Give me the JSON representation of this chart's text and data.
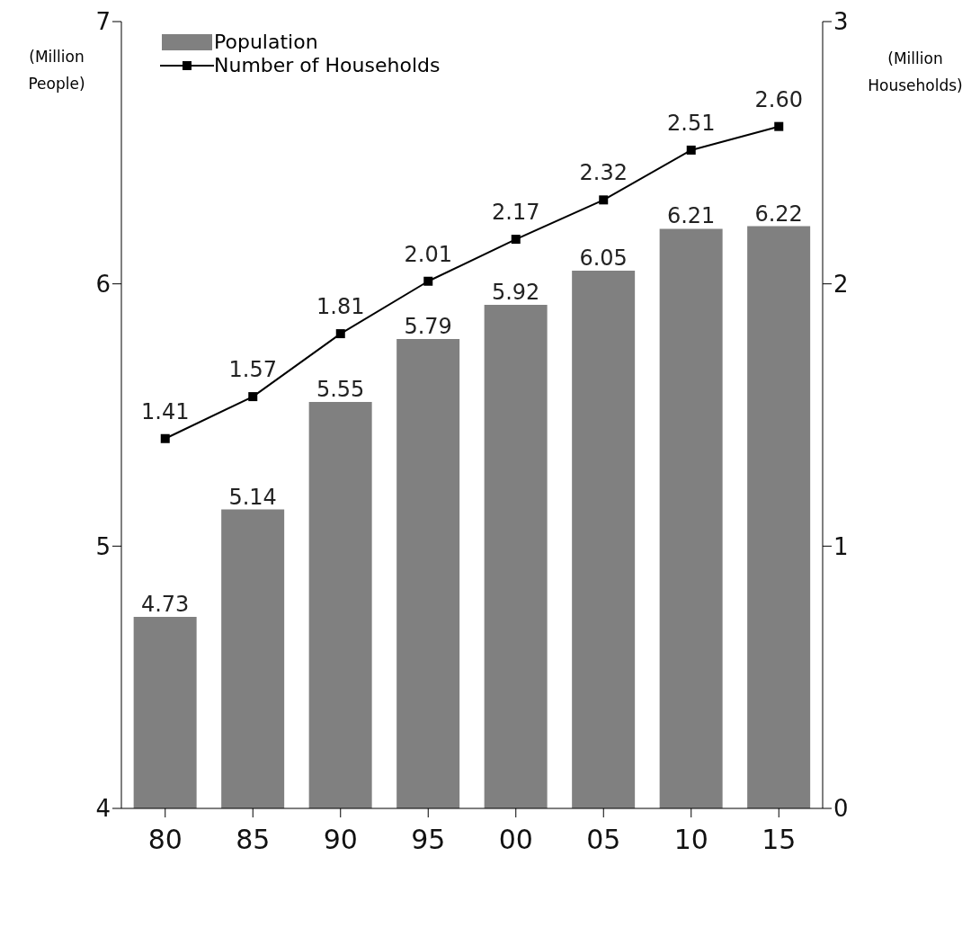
{
  "chart_data": {
    "type": "bar",
    "categories": [
      "80",
      "85",
      "90",
      "95",
      "00",
      "05",
      "10",
      "15"
    ],
    "ylabel": "(Million People)",
    "y2label": "(Million Households)",
    "ylim": [
      4,
      7
    ],
    "yticks": [
      4,
      5,
      6,
      7
    ],
    "y2lim": [
      0,
      3
    ],
    "y2ticks": [
      0,
      1,
      2,
      3
    ],
    "series": [
      {
        "name": "Population",
        "color": "#808080",
        "values": [
          4.73,
          5.14,
          5.55,
          5.79,
          5.92,
          6.05,
          6.21,
          6.22
        ],
        "value_labels": [
          "4.73",
          "5.14",
          "5.55",
          "5.79",
          "5.92",
          "6.05",
          "6.21",
          "6.22"
        ]
      },
      {
        "name": "Number of Households",
        "type": "line",
        "axis": "y2",
        "color": "#000000",
        "marker": "square",
        "values": [
          1.41,
          1.57,
          1.81,
          2.01,
          2.17,
          2.32,
          2.51,
          2.6
        ],
        "value_labels": [
          "1.41",
          "1.57",
          "1.81",
          "2.01",
          "2.17",
          "2.32",
          "2.51",
          "2.60"
        ]
      }
    ],
    "legend": "top left"
  }
}
